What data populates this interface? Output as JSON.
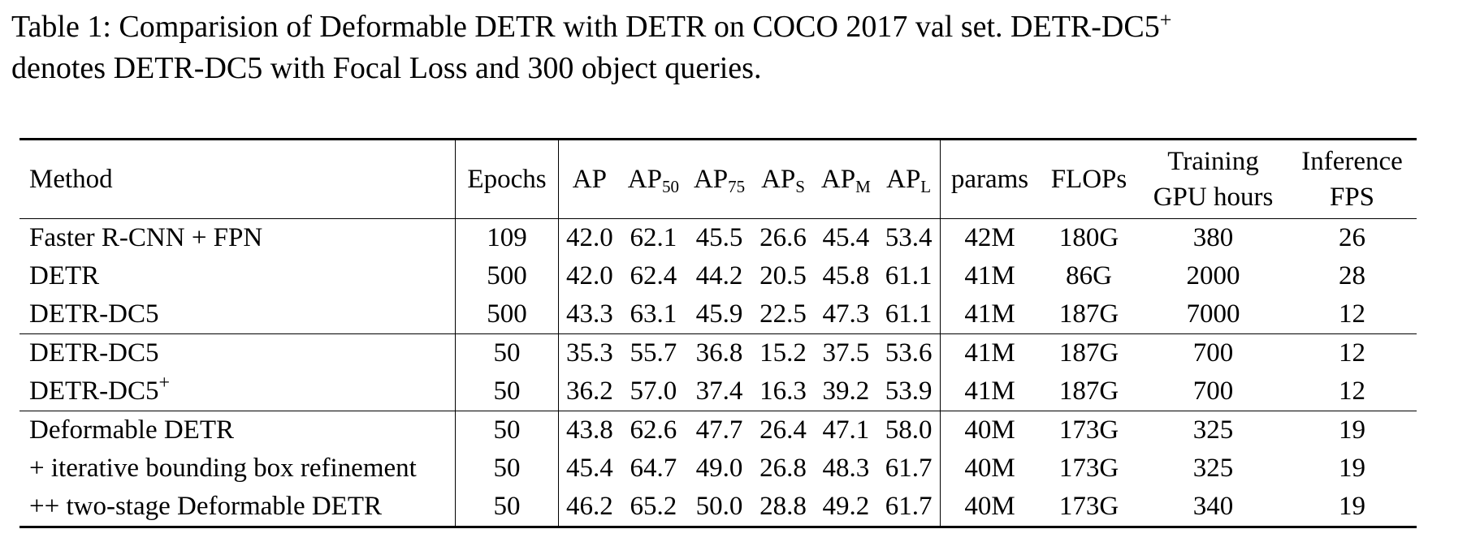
{
  "caption": {
    "line1": "Table 1: Comparision of Deformable DETR with DETR on COCO 2017 val set. DETR-DC5",
    "line1_sup": "+",
    "line2": "denotes DETR-DC5 with Focal Loss and 300 object queries."
  },
  "header": {
    "method": "Method",
    "epochs": "Epochs",
    "ap": "AP",
    "ap50_base": "AP",
    "ap50_sub": "50",
    "ap75_base": "AP",
    "ap75_sub": "75",
    "aps_base": "AP",
    "aps_sub": "S",
    "apm_base": "AP",
    "apm_sub": "M",
    "apl_base": "AP",
    "apl_sub": "L",
    "params": "params",
    "flops": "FLOPs",
    "training_line1": "Training",
    "training_line2": "GPU hours",
    "inference_line1": "Inference",
    "inference_line2": "FPS"
  },
  "rows": [
    {
      "method": "Faster R-CNN + FPN",
      "method_sup": "",
      "epochs": "109",
      "ap": "42.0",
      "ap50": "62.1",
      "ap75": "45.5",
      "aps": "26.6",
      "apm": "45.4",
      "apl": "53.4",
      "params": "42M",
      "flops": "180G",
      "gpu_hours": "380",
      "fps": "26"
    },
    {
      "method": "DETR",
      "method_sup": "",
      "epochs": "500",
      "ap": "42.0",
      "ap50": "62.4",
      "ap75": "44.2",
      "aps": "20.5",
      "apm": "45.8",
      "apl": "61.1",
      "params": "41M",
      "flops": "86G",
      "gpu_hours": "2000",
      "fps": "28"
    },
    {
      "method": "DETR-DC5",
      "method_sup": "",
      "epochs": "500",
      "ap": "43.3",
      "ap50": "63.1",
      "ap75": "45.9",
      "aps": "22.5",
      "apm": "47.3",
      "apl": "61.1",
      "params": "41M",
      "flops": "187G",
      "gpu_hours": "7000",
      "fps": "12"
    },
    {
      "method": "DETR-DC5",
      "method_sup": "",
      "epochs": "50",
      "ap": "35.3",
      "ap50": "55.7",
      "ap75": "36.8",
      "aps": "15.2",
      "apm": "37.5",
      "apl": "53.6",
      "params": "41M",
      "flops": "187G",
      "gpu_hours": "700",
      "fps": "12"
    },
    {
      "method": "DETR-DC5",
      "method_sup": "+",
      "epochs": "50",
      "ap": "36.2",
      "ap50": "57.0",
      "ap75": "37.4",
      "aps": "16.3",
      "apm": "39.2",
      "apl": "53.9",
      "params": "41M",
      "flops": "187G",
      "gpu_hours": "700",
      "fps": "12"
    },
    {
      "method": "Deformable DETR",
      "method_sup": "",
      "epochs": "50",
      "ap": "43.8",
      "ap50": "62.6",
      "ap75": "47.7",
      "aps": "26.4",
      "apm": "47.1",
      "apl": "58.0",
      "params": "40M",
      "flops": "173G",
      "gpu_hours": "325",
      "fps": "19"
    },
    {
      "method": "+ iterative bounding box refinement",
      "method_sup": "",
      "epochs": "50",
      "ap": "45.4",
      "ap50": "64.7",
      "ap75": "49.0",
      "aps": "26.8",
      "apm": "48.3",
      "apl": "61.7",
      "params": "40M",
      "flops": "173G",
      "gpu_hours": "325",
      "fps": "19"
    },
    {
      "method": "++ two-stage Deformable DETR",
      "method_sup": "",
      "epochs": "50",
      "ap": "46.2",
      "ap50": "65.2",
      "ap75": "50.0",
      "aps": "28.8",
      "apm": "49.2",
      "apl": "61.7",
      "params": "40M",
      "flops": "173G",
      "gpu_hours": "340",
      "fps": "19"
    }
  ]
}
